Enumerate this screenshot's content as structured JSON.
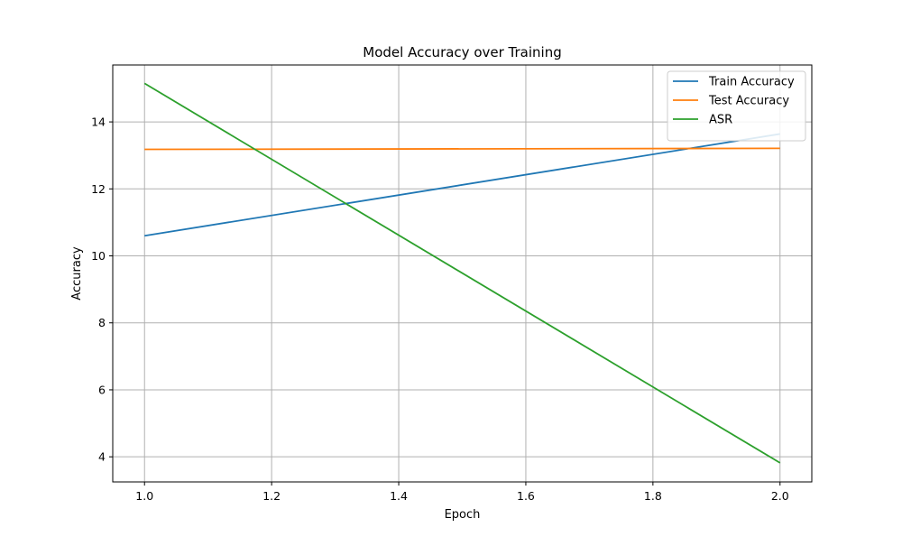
{
  "chart_data": {
    "type": "line",
    "title": "Model Accuracy over Training",
    "xlabel": "Epoch",
    "ylabel": "Accuracy",
    "xlim": [
      0.95,
      2.05
    ],
    "ylim": [
      3.25,
      15.7
    ],
    "xticks": [
      1.0,
      1.2,
      1.4,
      1.6,
      1.8,
      2.0
    ],
    "xtick_labels": [
      "1.0",
      "1.2",
      "1.4",
      "1.6",
      "1.8",
      "2.0"
    ],
    "yticks": [
      4,
      6,
      8,
      10,
      12,
      14
    ],
    "ytick_labels": [
      "4",
      "6",
      "8",
      "10",
      "12",
      "14"
    ],
    "grid": true,
    "legend_position": "top-right",
    "x": [
      1,
      2
    ],
    "series": [
      {
        "name": "Train Accuracy",
        "color": "#1f77b4",
        "values": [
          10.6,
          13.64
        ]
      },
      {
        "name": "Test Accuracy",
        "color": "#ff7f0e",
        "values": [
          13.18,
          13.21
        ]
      },
      {
        "name": "ASR",
        "color": "#2ca02c",
        "values": [
          15.15,
          3.82
        ]
      }
    ]
  }
}
